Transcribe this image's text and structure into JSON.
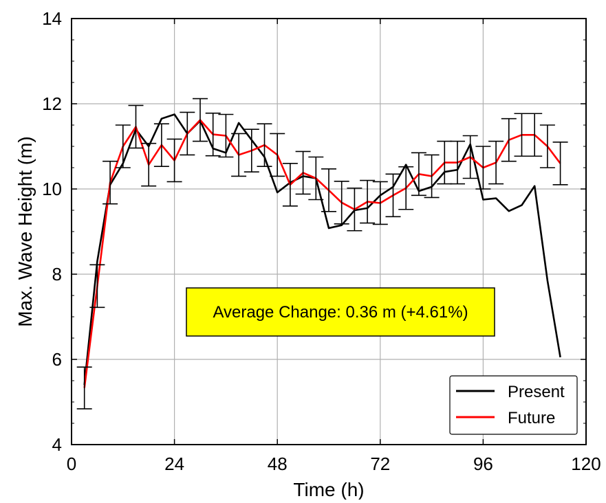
{
  "chart_data": {
    "type": "line",
    "xlabel": "Time (h)",
    "ylabel": "Max. Wave Height (m)",
    "xlim": [
      0,
      120
    ],
    "ylim": [
      4,
      14
    ],
    "x_ticks": [
      0,
      24,
      48,
      72,
      96,
      120
    ],
    "y_ticks": [
      4,
      6,
      8,
      10,
      12,
      14
    ],
    "grid": true,
    "legend_position": "bottom-right",
    "series": [
      {
        "name": "Present",
        "color": "#000000",
        "x": [
          3,
          6,
          9,
          12,
          15,
          18,
          21,
          24,
          27,
          30,
          33,
          36,
          39,
          42,
          45,
          48,
          51,
          54,
          57,
          60,
          63,
          66,
          69,
          72,
          75,
          78,
          81,
          84,
          87,
          90,
          93,
          96,
          99,
          102,
          105,
          108,
          111,
          114
        ],
        "values": [
          5.4,
          8.3,
          10.1,
          10.6,
          11.4,
          11.0,
          11.65,
          11.75,
          11.3,
          11.6,
          10.95,
          10.85,
          11.55,
          11.15,
          10.75,
          9.92,
          10.15,
          10.3,
          10.25,
          9.08,
          9.15,
          9.5,
          9.55,
          9.85,
          10.05,
          10.57,
          9.95,
          10.05,
          10.4,
          10.45,
          11.05,
          9.75,
          9.78,
          9.48,
          9.62,
          10.07,
          7.85,
          6.05
        ]
      },
      {
        "name": "Future",
        "color": "#ff0000",
        "x": [
          3,
          6,
          9,
          12,
          15,
          18,
          21,
          24,
          27,
          30,
          33,
          36,
          39,
          42,
          45,
          48,
          51,
          54,
          57,
          60,
          63,
          66,
          69,
          72,
          75,
          78,
          81,
          84,
          87,
          90,
          93,
          96,
          99,
          102,
          105,
          108,
          111,
          114
        ],
        "values": [
          5.33,
          7.72,
          10.15,
          11.0,
          11.46,
          10.57,
          11.03,
          10.67,
          11.3,
          11.62,
          11.28,
          11.25,
          10.8,
          10.9,
          11.03,
          10.8,
          10.1,
          10.38,
          10.25,
          9.97,
          9.68,
          9.52,
          9.7,
          9.67,
          9.85,
          10.02,
          10.35,
          10.3,
          10.62,
          10.62,
          10.75,
          10.5,
          10.62,
          11.15,
          11.27,
          11.27,
          11.0,
          10.6
        ]
      }
    ],
    "error_bars": {
      "series": "Future",
      "low": [
        4.84,
        7.22,
        9.65,
        10.5,
        10.96,
        10.07,
        10.53,
        10.17,
        10.8,
        11.12,
        10.78,
        10.75,
        10.3,
        10.4,
        10.53,
        10.3,
        9.6,
        9.88,
        9.75,
        9.47,
        9.18,
        9.02,
        9.2,
        9.17,
        9.35,
        9.52,
        9.85,
        9.8,
        10.12,
        10.12,
        10.25,
        10.0,
        10.12,
        10.65,
        10.77,
        10.77,
        10.5,
        10.1
      ],
      "high": [
        5.82,
        8.22,
        10.65,
        11.5,
        11.96,
        11.07,
        11.53,
        11.17,
        11.8,
        12.12,
        11.78,
        11.75,
        11.3,
        11.4,
        11.53,
        11.3,
        10.6,
        10.88,
        10.75,
        10.47,
        10.18,
        10.02,
        10.2,
        10.17,
        10.35,
        10.52,
        10.85,
        10.8,
        11.12,
        11.12,
        11.25,
        11.0,
        11.12,
        11.65,
        11.77,
        11.77,
        11.5,
        11.1
      ]
    },
    "annotation": {
      "text": "Average Change: 0.36 m (+4.61%)",
      "background": "#ffff00"
    }
  }
}
